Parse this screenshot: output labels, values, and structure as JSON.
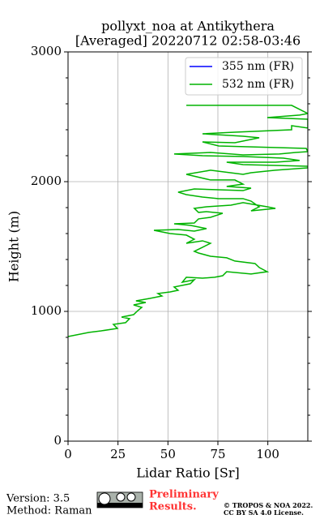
{
  "chart_data": {
    "type": "line",
    "title": [
      "pollyxt_noa at Antikythera",
      "[Averaged] 20220712 02:58-03:46"
    ],
    "xlabel": "Lidar Ratio [Sr]",
    "ylabel": "Height (m)",
    "xlim": [
      0,
      120
    ],
    "xticks": [
      0,
      25,
      50,
      75,
      100
    ],
    "ylim": [
      0,
      3000
    ],
    "yticks": [
      0,
      1000,
      2000,
      3000
    ],
    "yminorticks": [
      200,
      400,
      600,
      800,
      1200,
      1400,
      1600,
      1800,
      2200,
      2400,
      2600,
      2800
    ],
    "grid": true,
    "legend": "upper right",
    "y": [
      806,
      838,
      850,
      869,
      900,
      913,
      944,
      956,
      975,
      1006,
      1031,
      1050,
      1069,
      1081,
      1100,
      1119,
      1138,
      1150,
      1163,
      1188,
      1213,
      1244,
      1225,
      1263,
      1256,
      1263,
      1275,
      1306,
      1288,
      1306,
      1338,
      1369,
      1388,
      1413,
      1425,
      1450,
      1463,
      1494,
      1525,
      1544,
      1525,
      1556,
      1588,
      1600,
      1625,
      1631,
      1619,
      1638,
      1663,
      1675,
      1681,
      1713,
      1725,
      1756,
      1769,
      1763,
      1794,
      1806,
      1819,
      1838,
      1806,
      1794,
      1775,
      1806,
      1850,
      1869,
      1869,
      1881,
      1900,
      1919,
      1944,
      1931,
      1950,
      1963,
      1981,
      2013,
      2013,
      2056,
      2088,
      2056,
      2069,
      2088,
      2106,
      2119,
      2131,
      2150,
      2150,
      2163,
      2181,
      2194,
      2200,
      2213,
      2225,
      2206,
      2213,
      2225,
      2231,
      2256,
      2275,
      2306,
      2300,
      2338,
      2350,
      2369,
      2381,
      2400,
      2431,
      2413,
      2481,
      2494,
      2513,
      2525,
      2588,
      2588
    ],
    "series": [
      {
        "name": "355 nm (FR)",
        "color": "#0000ff",
        "values": [
          null,
          null,
          null,
          null,
          null,
          null,
          null,
          null,
          null,
          null,
          null,
          null,
          null,
          null,
          null,
          null,
          null,
          null,
          null,
          null,
          null,
          null,
          null,
          null,
          null,
          null,
          null,
          null,
          null,
          null,
          null,
          null,
          null,
          null,
          null,
          null,
          null,
          null,
          null,
          null,
          null,
          null,
          null,
          null,
          null,
          null,
          null,
          null,
          null,
          null,
          null,
          null,
          null,
          null,
          null,
          null,
          null,
          null,
          null,
          null,
          null,
          null,
          null,
          null,
          null,
          null,
          null,
          null,
          null,
          null,
          null,
          null,
          null,
          null,
          null,
          null,
          null,
          null,
          null,
          null,
          null,
          null,
          null,
          null,
          null,
          null,
          null,
          null,
          null,
          null,
          null,
          null,
          null,
          null,
          null,
          null,
          null,
          null,
          null,
          null,
          null,
          null,
          null,
          null,
          null,
          null,
          null,
          null,
          null,
          null,
          null,
          null,
          null,
          null
        ]
      },
      {
        "name": "532 nm (FR)",
        "color": "#00b300",
        "values": [
          0,
          10.5,
          16.6,
          24.7,
          22.7,
          28.8,
          30.8,
          26.8,
          32.8,
          34.9,
          36.9,
          32.8,
          38.9,
          34.0,
          40.9,
          47.0,
          45.0,
          51.1,
          55.1,
          53.1,
          61.2,
          63.2,
          57.2,
          59.2,
          67.3,
          73.4,
          77.4,
          79.4,
          91.6,
          99.7,
          95.7,
          93.6,
          83.5,
          79.4,
          71.3,
          65.3,
          63.2,
          67.3,
          71.3,
          67.3,
          59.2,
          63.2,
          59.2,
          51.1,
          43.0,
          55.1,
          63.2,
          69.3,
          61.2,
          53.1,
          63.2,
          65.3,
          71.3,
          77.4,
          69.3,
          65.3,
          63.2,
          69.3,
          81.5,
          87.6,
          99.7,
          103.8,
          91.6,
          95.7,
          91.6,
          87.6,
          75.4,
          67.3,
          59.2,
          55.1,
          63.2,
          87.6,
          91.6,
          79.4,
          87.6,
          83.5,
          71.3,
          59.2,
          71.3,
          87.6,
          91.6,
          103.8,
          120.0,
          120.0,
          87.6,
          79.4,
          103.8,
          115.9,
          107.8,
          87.6,
          67.3,
          53.1,
          71.3,
          87.6,
          105.8,
          113.9,
          120.0,
          119.2,
          75.4,
          67.3,
          83.5,
          95.7,
          87.6,
          67.3,
          83.5,
          111.9,
          111.9,
          120.0,
          120.0,
          99.7,
          115.9,
          120.0,
          111.9,
          59.2
        ]
      }
    ]
  },
  "footer": {
    "version": "Version: 3.5",
    "method": "Method: Raman",
    "preliminary": "Preliminary",
    "results": "Results.",
    "copyright": "© TROPOS & NOA 2022.",
    "license": "CC BY SA 4.0 License."
  }
}
